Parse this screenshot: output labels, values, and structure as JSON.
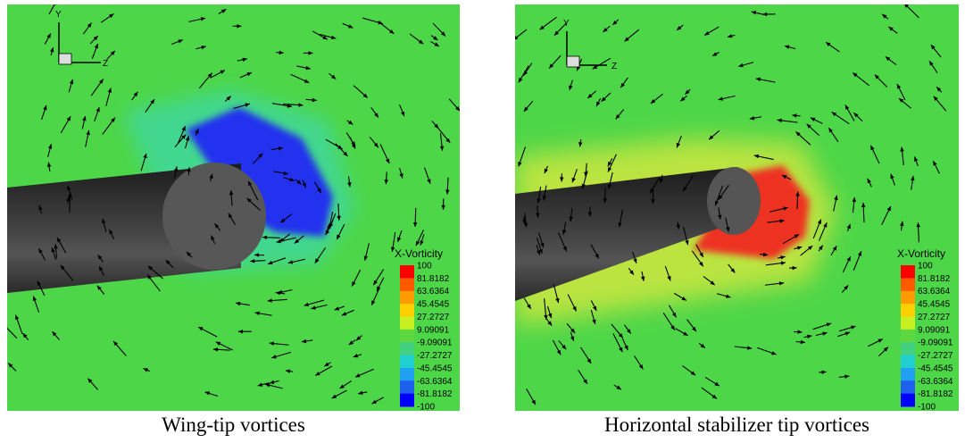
{
  "panels": [
    {
      "axis_y": "Y",
      "axis_z": "Z",
      "legend": {
        "title": "X-Vorticity",
        "labels": [
          "100",
          "81.8182",
          "63.6364",
          "45.4545",
          "27.2727",
          "9.09091",
          "-9.09091",
          "-27.2727",
          "-45.4545",
          "-63.6364",
          "-81.8182",
          "-100"
        ]
      },
      "caption": "Wing-tip vortices"
    },
    {
      "axis_y": "Y",
      "axis_z": "Z",
      "legend": {
        "title": "X-Vorticity",
        "labels": [
          "100",
          "81.8182",
          "63.6364",
          "45.4545",
          "27.2727",
          "9.09091",
          "-9.09091",
          "-27.2727",
          "-45.4545",
          "-63.6364",
          "-81.8182",
          "-100"
        ]
      },
      "caption": "Horizontal stabilizer tip vortices"
    }
  ]
}
